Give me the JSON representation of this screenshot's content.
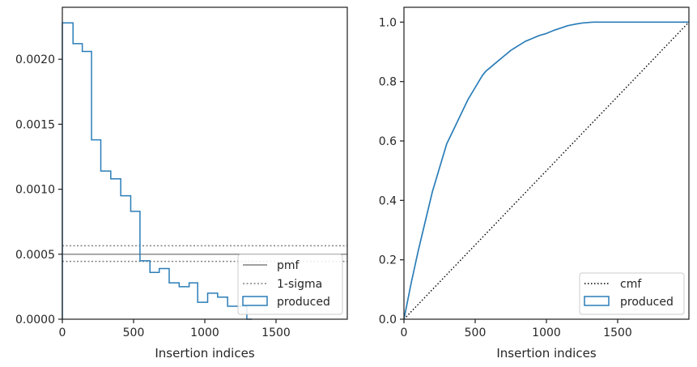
{
  "chart_data": [
    {
      "type": "histogram",
      "xlabel": "Insertion indices",
      "ylabel": "",
      "xlim": [
        0,
        2000
      ],
      "ylim": [
        0,
        0.0024
      ],
      "xticks": [
        "0",
        "500",
        "1000",
        "1500"
      ],
      "yticks": [
        "0.0000",
        "0.0005",
        "0.0010",
        "0.0015",
        "0.0020"
      ],
      "legend_position": "lower-right",
      "legend": [
        "pmf",
        "1-sigma",
        "produced"
      ],
      "bins": [
        0,
        75,
        140,
        205,
        270,
        340,
        410,
        480,
        545,
        615,
        680,
        750,
        820,
        890,
        950,
        1020,
        1090,
        1160,
        1230,
        1295,
        1330
      ],
      "values": [
        0.00228,
        0.00212,
        0.00206,
        0.00138,
        0.00114,
        0.00108,
        0.00095,
        0.00083,
        0.00045,
        0.00036,
        0.00039,
        0.00028,
        0.00025,
        0.00028,
        0.00013,
        0.0002,
        0.00017,
        0.0001,
        0.0001,
        0.0
      ],
      "pmf": 0.0005,
      "sigma_band": [
        0.000445,
        0.000565
      ],
      "colors": {
        "produced": "#2a7db8",
        "pmf": "#808080",
        "sigma": "#808080"
      }
    },
    {
      "type": "line",
      "xlabel": "Insertion indices",
      "ylabel": "",
      "xlim": [
        0,
        2000
      ],
      "ylim": [
        0,
        1.05
      ],
      "xticks": [
        "0",
        "500",
        "1000",
        "1500"
      ],
      "yticks": [
        "0.0",
        "0.2",
        "0.4",
        "0.6",
        "0.8",
        "1.0"
      ],
      "legend_position": "lower-right",
      "legend": [
        "cmf",
        "produced"
      ],
      "series": [
        {
          "name": "cmf",
          "style": "dotted",
          "color": "#000000",
          "x": [
            0,
            2000
          ],
          "y": [
            0,
            1
          ]
        },
        {
          "name": "produced",
          "style": "step",
          "color": "#2a7db8",
          "x": [
            0,
            25,
            50,
            100,
            150,
            200,
            250,
            300,
            350,
            400,
            450,
            500,
            550,
            575,
            600,
            650,
            700,
            750,
            800,
            850,
            900,
            950,
            1000,
            1050,
            1100,
            1150,
            1200,
            1250,
            1300,
            1330,
            1500,
            2000
          ],
          "y": [
            0,
            0.06,
            0.12,
            0.23,
            0.33,
            0.43,
            0.51,
            0.59,
            0.64,
            0.69,
            0.74,
            0.78,
            0.82,
            0.835,
            0.845,
            0.865,
            0.885,
            0.905,
            0.92,
            0.935,
            0.945,
            0.955,
            0.962,
            0.972,
            0.98,
            0.988,
            0.993,
            0.997,
            0.999,
            1.0,
            1.0,
            1.0
          ]
        }
      ]
    }
  ]
}
